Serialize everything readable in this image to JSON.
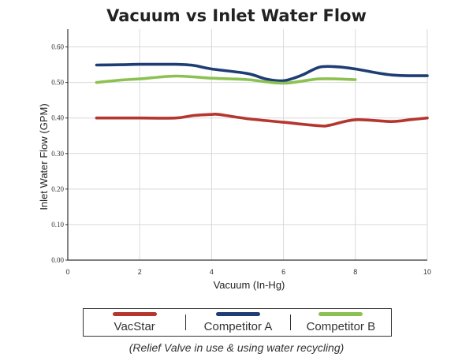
{
  "chart_data": {
    "type": "line",
    "title": "Vacuum vs Inlet Water Flow",
    "xlabel": "Vacuum (In-Hg)",
    "ylabel": "Inlet Water Flow (GPM)",
    "xlim": [
      0,
      10
    ],
    "ylim": [
      0,
      0.65
    ],
    "x_ticks": [
      "0",
      "2",
      "4",
      "6",
      "8",
      "10"
    ],
    "y_ticks": [
      "0.00",
      "0.10",
      "0.20",
      "0.30",
      "0.40",
      "0.50",
      "0.60"
    ],
    "grid": true,
    "legend_position": "bottom",
    "series": [
      {
        "name": "VacStar",
        "color": "#b5362f",
        "x": [
          0.8,
          1.5,
          2,
          3,
          3.5,
          4,
          4.2,
          5,
          6,
          7,
          7.3,
          8,
          9,
          9.5,
          10
        ],
        "y": [
          0.4,
          0.4,
          0.4,
          0.4,
          0.407,
          0.41,
          0.41,
          0.398,
          0.388,
          0.378,
          0.38,
          0.395,
          0.39,
          0.395,
          0.4
        ]
      },
      {
        "name": "Competitor A",
        "color": "#1e3d73",
        "x": [
          0.8,
          1.5,
          2,
          3,
          3.5,
          4,
          5,
          5.5,
          6,
          6.5,
          7,
          7.5,
          8,
          9,
          10
        ],
        "y": [
          0.549,
          0.55,
          0.551,
          0.551,
          0.548,
          0.538,
          0.525,
          0.51,
          0.505,
          0.52,
          0.543,
          0.544,
          0.538,
          0.521,
          0.519
        ]
      },
      {
        "name": "Competitor B",
        "color": "#8cc152",
        "x": [
          0.8,
          1.5,
          2,
          3,
          4,
          5,
          6,
          7,
          8
        ],
        "y": [
          0.5,
          0.507,
          0.51,
          0.518,
          0.512,
          0.508,
          0.498,
          0.51,
          0.508
        ]
      }
    ]
  },
  "caption": "(Relief Valve in use & using water recycling)"
}
